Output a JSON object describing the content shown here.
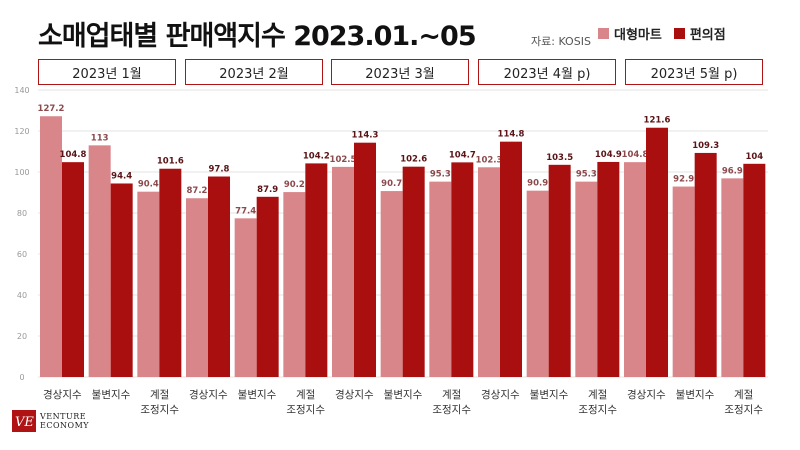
{
  "title": "소매업태별 판매액지수 2023.01.~05",
  "source": "자료: KOSIS",
  "legend": {
    "large_mart": "대형마트",
    "convenience": "편의점"
  },
  "colors": {
    "large_mart": "#d9868a",
    "convenience": "#aa0f10",
    "accent": "#b01313"
  },
  "months": [
    "2023년 1월",
    "2023년 2월",
    "2023년 3월",
    "2023년 4월 p)",
    "2023년 5월 p)"
  ],
  "logo": {
    "line1": "VENTURE",
    "line2": "ECONOMY"
  },
  "chart_data": {
    "type": "bar",
    "ylim": [
      0,
      140
    ],
    "yticks": [
      0,
      20,
      40,
      60,
      80,
      100,
      120,
      140
    ],
    "grid": true,
    "legend_position": "top-right",
    "groups": [
      {
        "month": "2023년 1월",
        "categories": [
          "경상지수",
          "불변지수",
          "계절\n조정지수"
        ]
      },
      {
        "month": "2023년 2월",
        "categories": [
          "경상지수",
          "불변지수",
          "계절\n조정지수"
        ]
      },
      {
        "month": "2023년 3월",
        "categories": [
          "경상지수",
          "불변지수",
          "계절\n조정지수"
        ]
      },
      {
        "month": "2023년 4월 p)",
        "categories": [
          "경상지수",
          "불변지수",
          "계절\n조정지수"
        ]
      },
      {
        "month": "2023년 5월 p)",
        "categories": [
          "경상지수",
          "불변지수",
          "계절\n조정지수"
        ]
      }
    ],
    "categories": [
      "경상지수",
      "불변지수",
      "계절\n조정지수",
      "경상지수",
      "불변지수",
      "계절\n조정지수",
      "경상지수",
      "불변지수",
      "계절\n조정지수",
      "경상지수",
      "불변지수",
      "계절\n조정지수",
      "경상지수",
      "불변지수",
      "계절\n조정지수"
    ],
    "series": [
      {
        "name": "대형마트",
        "values": [
          127.2,
          113,
          90.4,
          87.2,
          77.4,
          90.2,
          102.5,
          90.7,
          95.3,
          102.3,
          90.9,
          95.3,
          104.8,
          92.9,
          96.9
        ]
      },
      {
        "name": "편의점",
        "values": [
          104.8,
          94.4,
          101.6,
          97.8,
          87.9,
          104.2,
          114.3,
          102.6,
          104.7,
          114.8,
          103.5,
          104.9,
          121.6,
          109.3,
          104
        ]
      }
    ]
  }
}
